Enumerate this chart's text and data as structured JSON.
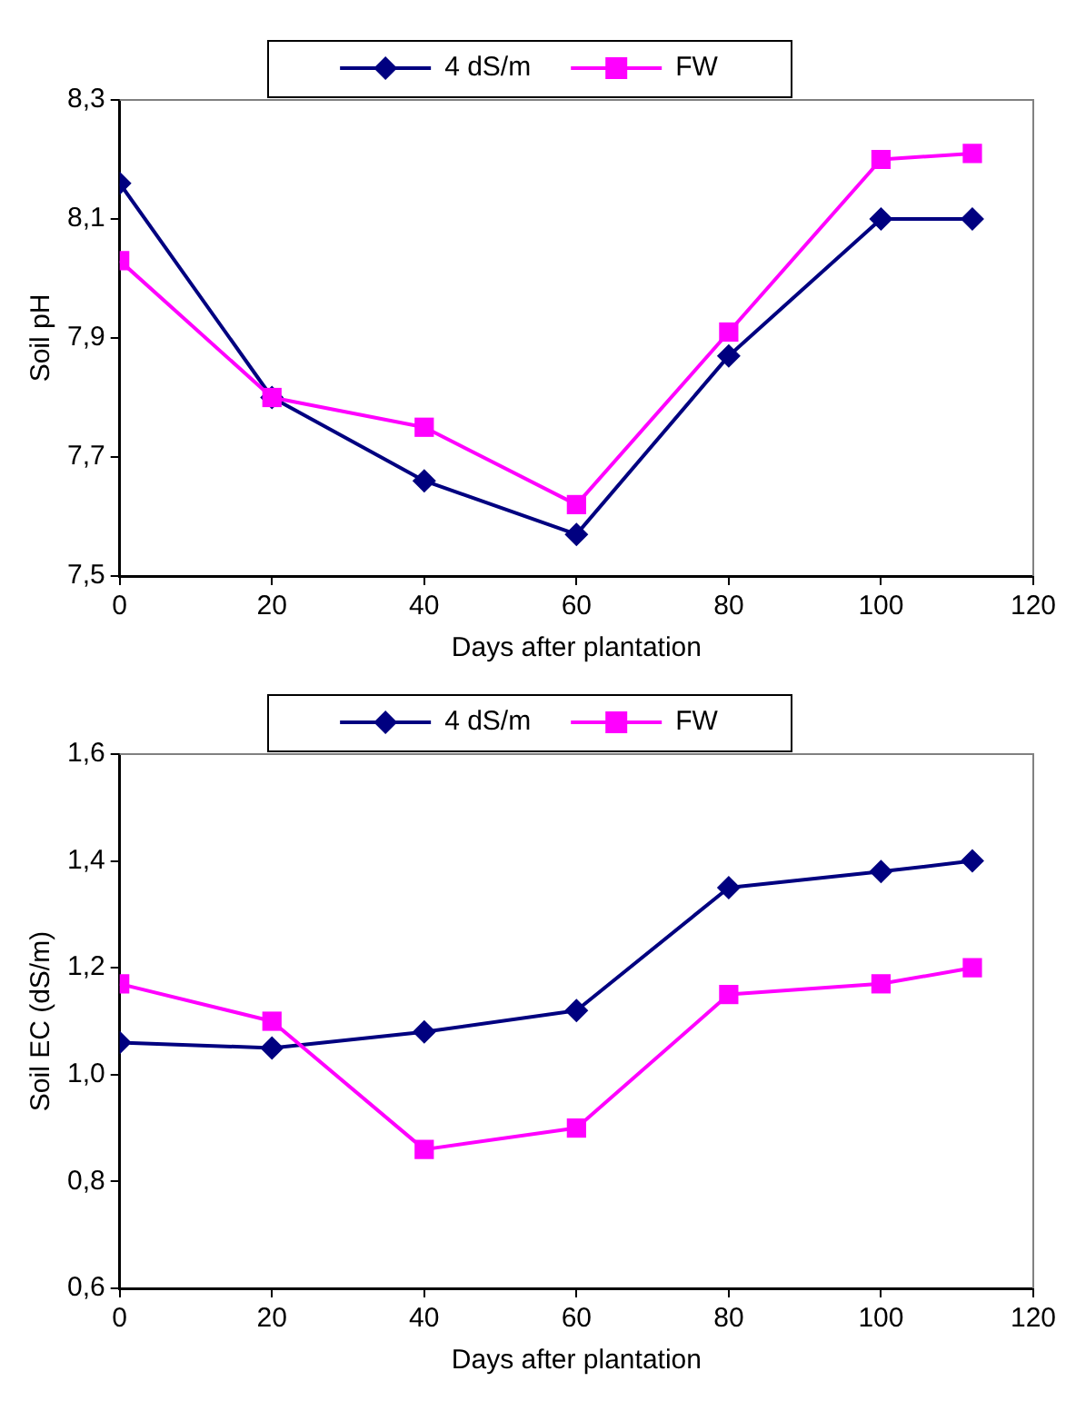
{
  "chart_data": [
    {
      "type": "line",
      "xlabel": "Days after plantation",
      "ylabel": "Soil pH",
      "x": [
        0,
        20,
        40,
        60,
        80,
        100,
        112
      ],
      "series": [
        {
          "name": "4 dS/m",
          "color": "#000080",
          "marker": "diamond",
          "values": [
            8.16,
            7.8,
            7.66,
            7.57,
            7.87,
            8.1,
            8.1
          ]
        },
        {
          "name": "FW",
          "color": "#ff00ff",
          "marker": "square",
          "values": [
            8.03,
            7.8,
            7.75,
            7.62,
            7.91,
            8.2,
            8.21
          ]
        }
      ],
      "xlim": [
        0,
        120
      ],
      "xticks": [
        0,
        20,
        40,
        60,
        80,
        100,
        120
      ],
      "ylim": [
        7.5,
        8.3
      ],
      "yticks": [
        {
          "value": 7.5,
          "label": "7,5"
        },
        {
          "value": 7.7,
          "label": "7,7"
        },
        {
          "value": 7.9,
          "label": "7,9"
        },
        {
          "value": 8.1,
          "label": "8,1"
        },
        {
          "value": 8.3,
          "label": "8,3"
        }
      ],
      "grid": false,
      "legend": "top",
      "line_style": "solid"
    },
    {
      "type": "line",
      "xlabel": "Days after plantation",
      "ylabel": "Soil EC (dS/m)",
      "x": [
        0,
        20,
        40,
        60,
        80,
        100,
        112
      ],
      "series": [
        {
          "name": "4 dS/m",
          "color": "#000080",
          "marker": "diamond",
          "values": [
            1.06,
            1.05,
            1.08,
            1.12,
            1.35,
            1.38,
            1.4
          ]
        },
        {
          "name": "FW",
          "color": "#ff00ff",
          "marker": "square",
          "values": [
            1.17,
            1.1,
            0.86,
            0.9,
            1.15,
            1.17,
            1.2
          ]
        }
      ],
      "xlim": [
        0,
        120
      ],
      "xticks": [
        0,
        20,
        40,
        60,
        80,
        100,
        120
      ],
      "ylim": [
        0.6,
        1.6
      ],
      "yticks": [
        {
          "value": 0.6,
          "label": "0,6"
        },
        {
          "value": 0.8,
          "label": "0,8"
        },
        {
          "value": 1.0,
          "label": "1,0"
        },
        {
          "value": 1.2,
          "label": "1,2"
        },
        {
          "value": 1.4,
          "label": "1,4"
        },
        {
          "value": 1.6,
          "label": "1,6"
        }
      ],
      "grid": false,
      "legend": "top",
      "line_style": "solid"
    }
  ]
}
